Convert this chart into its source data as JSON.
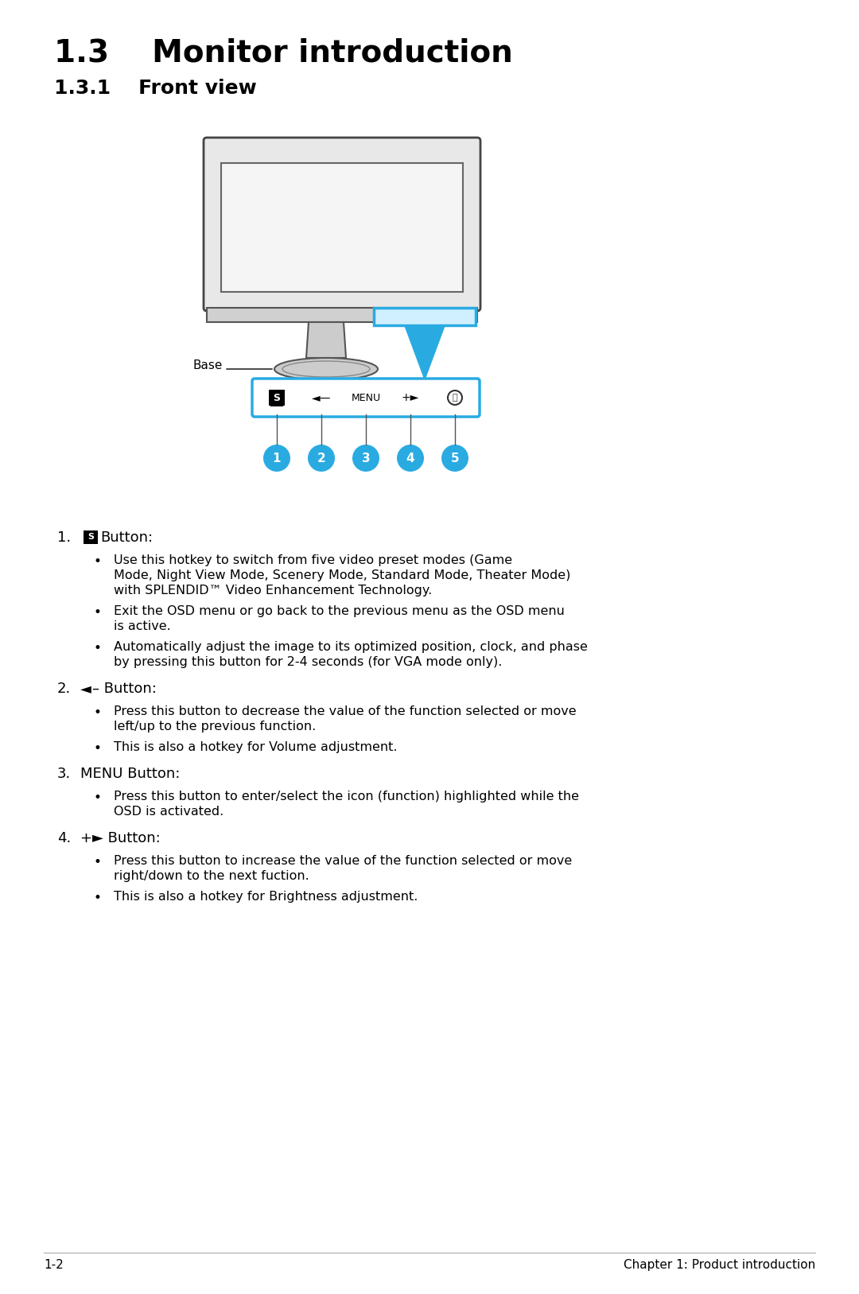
{
  "title": "1.3    Monitor introduction",
  "subtitle": "1.3.1    Front view",
  "bg_color": "#ffffff",
  "text_color": "#000000",
  "blue_color": "#29abe2",
  "footer_left": "1-2",
  "footer_right": "Chapter 1: Product introduction"
}
